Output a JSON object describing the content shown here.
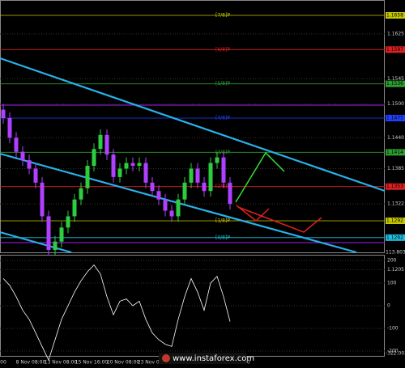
{
  "chart_data": {
    "type": "candlestick",
    "opens": [
      1.149,
      1.1475,
      1.144,
      1.1415,
      1.14,
      1.1385,
      1.136,
      1.13,
      1.124,
      1.1255,
      1.128,
      1.13,
      1.133,
      1.135,
      1.139,
      1.142,
      1.1445,
      1.141,
      1.137,
      1.1385,
      1.1395,
      1.139,
      1.1395,
      1.136,
      1.1345,
      1.133,
      1.131,
      1.13,
      1.133,
      1.136,
      1.1385,
      1.136,
      1.1345,
      1.1395,
      1.1405,
      1.136
    ],
    "highs": [
      1.15,
      1.1485,
      1.145,
      1.1425,
      1.141,
      1.1395,
      1.137,
      1.131,
      1.1265,
      1.129,
      1.131,
      1.134,
      1.136,
      1.14,
      1.143,
      1.1455,
      1.1455,
      1.142,
      1.1395,
      1.1405,
      1.1405,
      1.1405,
      1.1405,
      1.137,
      1.1355,
      1.134,
      1.132,
      1.134,
      1.137,
      1.1395,
      1.1395,
      1.137,
      1.1405,
      1.1415,
      1.1415,
      1.137
    ],
    "lows": [
      1.1465,
      1.143,
      1.1405,
      1.139,
      1.1375,
      1.135,
      1.129,
      1.123,
      1.123,
      1.1245,
      1.127,
      1.129,
      1.132,
      1.134,
      1.138,
      1.141,
      1.14,
      1.136,
      1.136,
      1.1375,
      1.138,
      1.138,
      1.135,
      1.1335,
      1.132,
      1.13,
      1.129,
      1.129,
      1.132,
      1.135,
      1.135,
      1.1335,
      1.1335,
      1.1385,
      1.135,
      1.1312
    ],
    "closes": [
      1.1475,
      1.144,
      1.1415,
      1.14,
      1.1385,
      1.136,
      1.13,
      1.124,
      1.1255,
      1.128,
      1.13,
      1.133,
      1.135,
      1.139,
      1.142,
      1.1445,
      1.141,
      1.137,
      1.1385,
      1.1395,
      1.139,
      1.1395,
      1.136,
      1.1345,
      1.133,
      1.131,
      1.13,
      1.133,
      1.136,
      1.1385,
      1.136,
      1.1345,
      1.1395,
      1.1405,
      1.136,
      1.1322
    ],
    "up_color": "#2ecc40",
    "down_color": "#b040ff",
    "levels": [
      {
        "name": "[7/8]P",
        "value": 1.1658,
        "color": "#c8c800"
      },
      {
        "name": "[6/8]P",
        "value": 1.1597,
        "color": "#e02020"
      },
      {
        "name": "[5/8]P",
        "value": 1.1536,
        "color": "#2e9e2e"
      },
      {
        "name": "[4/8]P",
        "value": 1.1475,
        "color": "#2040ff"
      },
      {
        "name": "[3/8]P",
        "value": 1.1414,
        "color": "#2e9e2e"
      },
      {
        "name": "[2/8]P",
        "value": 1.1353,
        "color": "#e02020"
      },
      {
        "name": "[1/8]P",
        "value": 1.1292,
        "color": "#c8c800"
      },
      {
        "name": "[0/8]P",
        "value": 1.1262,
        "color": "#20c0e0"
      }
    ],
    "yticks": [
      1.1625,
      1.1545,
      {
        "value": 1.15,
        "label": "1.1500"
      },
      {
        "value": 1.144,
        "label": "1.1440"
      },
      1.1385,
      1.1322,
      1.1205
    ],
    "cci": {
      "values": [
        120,
        90,
        40,
        -20,
        -60,
        -120,
        -180,
        -240,
        -150,
        -60,
        0,
        60,
        110,
        150,
        180,
        140,
        40,
        -40,
        20,
        30,
        0,
        20,
        -60,
        -120,
        -150,
        -170,
        -180,
        -60,
        40,
        120,
        60,
        -20,
        100,
        130,
        40,
        -70
      ],
      "color": "#ffffff",
      "yticks": [
        200,
        100,
        0,
        -100,
        -200
      ],
      "max_label": "113.8038",
      "min_label": "-322.0039"
    },
    "x_labels": [
      "00",
      "8 Nov 08:00",
      "13 Nov 08:00",
      "15 Nov 16:00",
      "20 Nov 08:00",
      "23 Nov 00:00",
      "16:00"
    ],
    "watermark": "www.instaforex.com"
  }
}
